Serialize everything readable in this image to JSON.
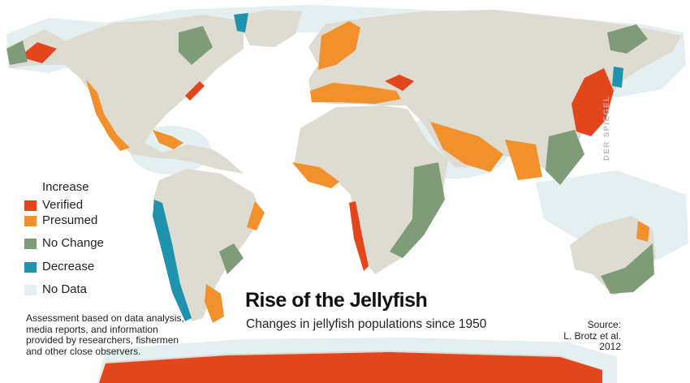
{
  "colors": {
    "ocean": "#ffffff",
    "no_data": "#e3eff1",
    "land": "#dedbd0",
    "verified": "#e3461d",
    "presumed": "#f2912b",
    "no_change": "#7f9c78",
    "decrease": "#1f93ad"
  },
  "legend": {
    "heading": "Increase",
    "items": [
      {
        "label": "Verified",
        "color_key": "verified"
      },
      {
        "label": "Presumed",
        "color_key": "presumed"
      },
      {
        "label": "No Change",
        "color_key": "no_change"
      },
      {
        "label": "Decrease",
        "color_key": "decrease"
      },
      {
        "label": "No Data",
        "color_key": "no_data"
      }
    ]
  },
  "note": "Assessment based on data analysis, media reports, and information provided by researchers, fishermen and other close observers.",
  "title": "Rise of the Jellyfish",
  "subtitle": "Changes in jellyfish populations since 1950",
  "source": {
    "line1": "Source:",
    "line2": "L. Brotz et al.",
    "line3": "2012"
  },
  "watermark": "DER SPIEGEL"
}
